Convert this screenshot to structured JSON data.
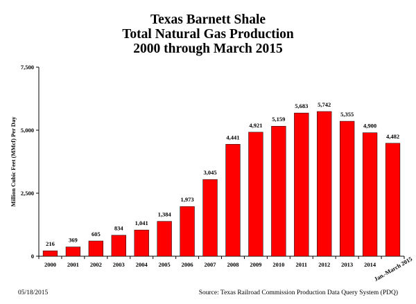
{
  "chart_data": {
    "type": "bar",
    "title": [
      "Texas Barnett Shale",
      "Total Natural Gas Production",
      "2000 through March 2015"
    ],
    "ylabel": "Million Cubic Feet (MMcf) Per Day",
    "xlabel": "",
    "ylim": [
      0,
      7500
    ],
    "yticks": [
      0,
      2500,
      5000,
      7500
    ],
    "ytick_labels": [
      "0",
      "2,500",
      "5,000",
      "7,500"
    ],
    "categories": [
      "2000",
      "2001",
      "2002",
      "2003",
      "2004",
      "2005",
      "2006",
      "2007",
      "2008",
      "2009",
      "2010",
      "2011",
      "2012",
      "2013",
      "2014",
      "Jan.-March 2015"
    ],
    "values": [
      216,
      369,
      605,
      834,
      1041,
      1384,
      1973,
      3045,
      4441,
      4921,
      5159,
      5683,
      5742,
      5355,
      4900,
      4482
    ],
    "value_labels": [
      "216",
      "369",
      "605",
      "834",
      "1,041",
      "1,384",
      "1,973",
      "3,045",
      "4,441",
      "4,921",
      "5,159",
      "5,683",
      "5,742",
      "5,355",
      "4,900",
      "4,482"
    ],
    "bar_color": "#ff0000",
    "bar_edge_color": "#000000",
    "grid": false,
    "legend": "none"
  },
  "footer": {
    "date": "05/18/2015",
    "source": "Source: Texas Railroad Commission Production Data Query System (PDQ)"
  }
}
